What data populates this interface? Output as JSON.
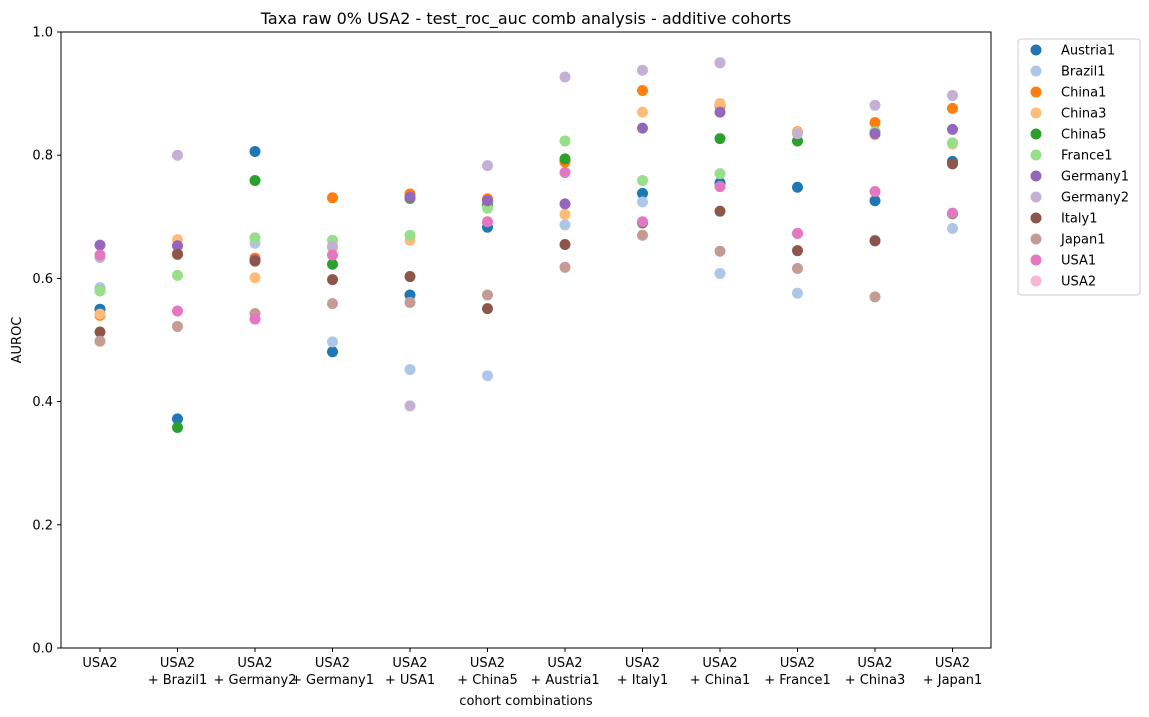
{
  "chart_data": {
    "type": "scatter",
    "title": "Taxa raw 0% USA2 - test_roc_auc comb analysis - additive cohorts",
    "xlabel": "cohort combinations",
    "ylabel": "AUROC",
    "ylim": [
      0,
      1
    ],
    "yticks": [
      "0.0",
      "0.2",
      "0.4",
      "0.6",
      "0.8",
      "1.0"
    ],
    "grid": false,
    "legend_position": "outside-top-right",
    "categories": [
      [
        "USA2"
      ],
      [
        "USA2",
        "+ Brazil1"
      ],
      [
        "USA2",
        "+ Germany2"
      ],
      [
        "USA2",
        "+ Germany1"
      ],
      [
        "USA2",
        "+ USA1"
      ],
      [
        "USA2",
        "+ China5"
      ],
      [
        "USA2",
        "+ Austria1"
      ],
      [
        "USA2",
        "+ Italy1"
      ],
      [
        "USA2",
        "+ China1"
      ],
      [
        "USA2",
        "+ France1"
      ],
      [
        "USA2",
        "+ China3"
      ],
      [
        "USA2",
        "+ Japan1"
      ]
    ],
    "series": [
      {
        "name": "Austria1",
        "color": "#1f77b4",
        "values": [
          0.55,
          0.372,
          0.806,
          0.481,
          0.573,
          0.683,
          0.791,
          0.738,
          0.755,
          0.748,
          0.726,
          0.79
        ]
      },
      {
        "name": "Brazil1",
        "color": "#aec7e8",
        "values": [
          0.585,
          null,
          0.657,
          0.497,
          0.452,
          0.442,
          0.687,
          0.724,
          0.608,
          0.576,
          0.662,
          0.681
        ]
      },
      {
        "name": "China1",
        "color": "#ff7f0e",
        "values": [
          0.54,
          0.64,
          0.633,
          0.731,
          0.737,
          0.729,
          0.789,
          0.905,
          0.88,
          0.838,
          0.853,
          0.876
        ]
      },
      {
        "name": "China3",
        "color": "#ffbb78",
        "values": [
          0.542,
          0.663,
          0.601,
          0.65,
          0.662,
          0.718,
          0.704,
          0.87,
          0.884,
          0.837,
          0.833,
          0.818
        ]
      },
      {
        "name": "China5",
        "color": "#2ca02c",
        "values": [
          0.58,
          0.358,
          0.759,
          0.623,
          0.73,
          0.72,
          0.794,
          0.69,
          0.827,
          0.823,
          0.838,
          0.705
        ]
      },
      {
        "name": "France1",
        "color": "#98df8a",
        "values": [
          0.58,
          0.605,
          0.666,
          0.662,
          0.67,
          0.714,
          0.823,
          0.759,
          0.77,
          null,
          0.838,
          0.82
        ]
      },
      {
        "name": "Germany1",
        "color": "#9467bd",
        "values": [
          0.654,
          0.653,
          0.63,
          null,
          0.732,
          0.726,
          0.721,
          0.844,
          0.87,
          null,
          0.835,
          0.842
        ]
      },
      {
        "name": "Germany2",
        "color": "#c5b0d5",
        "values": [
          0.634,
          0.8,
          null,
          0.652,
          0.393,
          0.783,
          0.927,
          0.938,
          0.95,
          0.835,
          0.881,
          0.897
        ]
      },
      {
        "name": "Italy1",
        "color": "#8c564b",
        "values": [
          0.513,
          0.639,
          0.628,
          0.598,
          0.603,
          0.551,
          0.655,
          null,
          0.709,
          0.645,
          0.661,
          0.786
        ]
      },
      {
        "name": "Japan1",
        "color": "#c49c94",
        "values": [
          0.498,
          0.522,
          0.543,
          0.559,
          0.561,
          0.573,
          0.618,
          0.67,
          0.644,
          0.616,
          0.57,
          null
        ]
      },
      {
        "name": "USA1",
        "color": "#e377c2",
        "values": [
          0.638,
          0.547,
          0.534,
          0.638,
          null,
          0.692,
          0.772,
          0.692,
          0.749,
          0.673,
          0.741,
          0.706
        ]
      },
      {
        "name": "USA2",
        "color": "#f7b6d2",
        "values": [
          null,
          null,
          null,
          null,
          null,
          null,
          null,
          null,
          null,
          null,
          null,
          null
        ]
      }
    ]
  }
}
